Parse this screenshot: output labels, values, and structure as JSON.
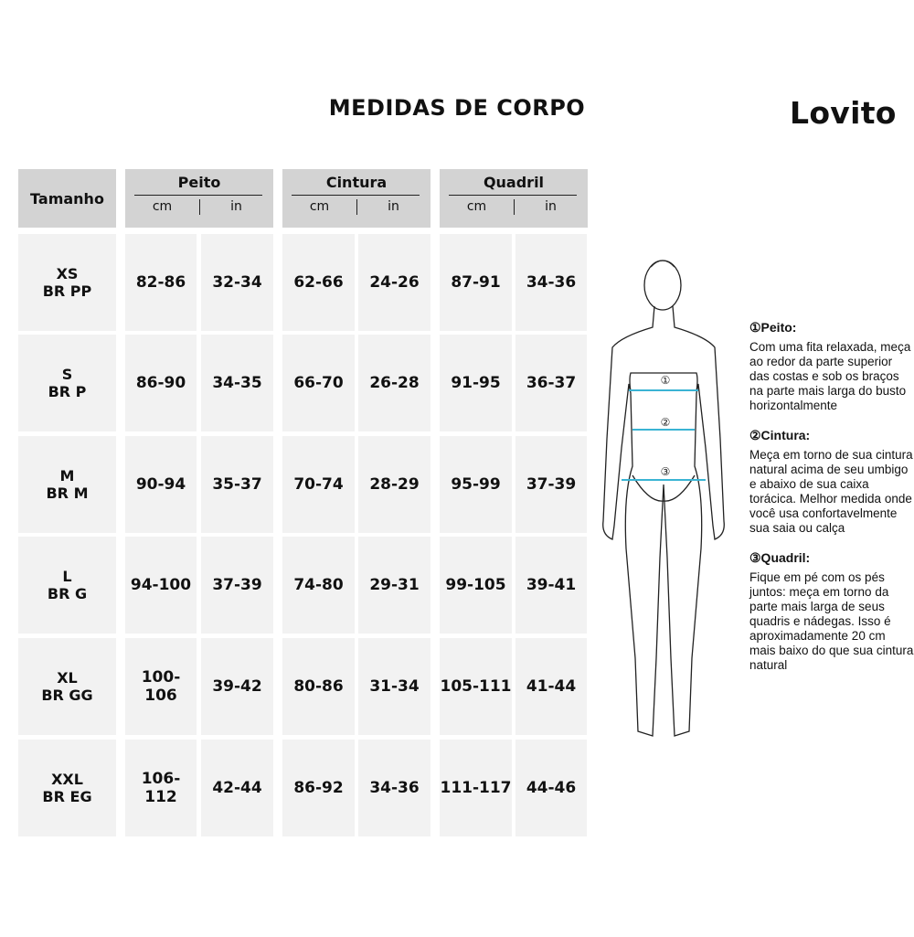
{
  "title": "MEDIDAS DE CORPO",
  "brand": "Lovito",
  "table": {
    "size_header": "Tamanho",
    "groups": [
      {
        "label": "Peito",
        "units": [
          "cm",
          "in"
        ]
      },
      {
        "label": "Cintura",
        "units": [
          "cm",
          "in"
        ]
      },
      {
        "label": "Quadril",
        "units": [
          "cm",
          "in"
        ]
      }
    ],
    "rows": [
      {
        "size": "XS",
        "br": "BR PP",
        "values": [
          "82-86",
          "32-34",
          "62-66",
          "24-26",
          "87-91",
          "34-36"
        ]
      },
      {
        "size": "S",
        "br": "BR P",
        "values": [
          "86-90",
          "34-35",
          "66-70",
          "26-28",
          "91-95",
          "36-37"
        ]
      },
      {
        "size": "M",
        "br": "BR M",
        "values": [
          "90-94",
          "35-37",
          "70-74",
          "28-29",
          "95-99",
          "37-39"
        ]
      },
      {
        "size": "L",
        "br": "BR G",
        "values": [
          "94-100",
          "37-39",
          "74-80",
          "29-31",
          "99-105",
          "39-41"
        ]
      },
      {
        "size": "XL",
        "br": "BR GG",
        "values": [
          "100-106",
          "39-42",
          "80-86",
          "31-34",
          "105-111",
          "41-44"
        ]
      },
      {
        "size": "XXL",
        "br": "BR EG",
        "values": [
          "106-112",
          "42-44",
          "86-92",
          "34-36",
          "111-117",
          "44-46"
        ]
      }
    ]
  },
  "figure": {
    "markers": [
      "①",
      "②",
      "③"
    ],
    "line_color": "#3ab4d4"
  },
  "notes": [
    {
      "heading": "①Peito:",
      "text": "Com uma fita relaxada, meça ao redor da parte superior das costas e sob os braços na parte mais larga do busto horizontalmente"
    },
    {
      "heading": "②Cintura:",
      "text": "Meça em torno de sua cintura natural acima de seu umbigo e abaixo de sua caixa torácica. Melhor medida onde você usa confortavelmente sua saia ou calça"
    },
    {
      "heading": "③Quadril:",
      "text": "Fique em pé com os pés juntos: meça em torno da parte mais larga de seus quadris e nádegas. Isso é aproximadamente 20 cm mais baixo do que sua cintura natural"
    }
  ]
}
